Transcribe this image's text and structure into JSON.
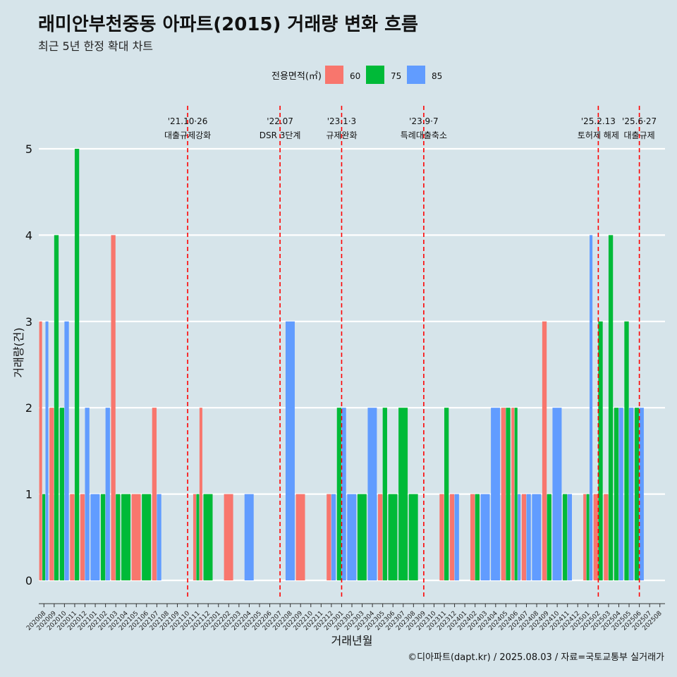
{
  "header": {
    "title": "래미안부천중동 아파트(2015) 거래량 변화 흐름",
    "subtitle": "최근 5년 한정 확대 차트",
    "caption": "©디아파트(dapt.kr) / 2025.08.03 / 자료=국토교통부 실거래가"
  },
  "colors": {
    "60": "#f8766d",
    "75": "#00ba38",
    "85": "#619cff",
    "event": "#ff0000",
    "background": "#d6e4ea",
    "grid": "#ffffff"
  },
  "chart_data": {
    "type": "bar",
    "title": "래미안부천중동 아파트(2015) 거래량 변화 흐름",
    "subtitle": "최근 5년 한정 확대 차트",
    "xlabel": "거래년월",
    "ylabel": "거래량(건)",
    "ylim": [
      0,
      5
    ],
    "yticks": [
      0,
      1,
      2,
      3,
      4,
      5
    ],
    "grid": true,
    "legend": {
      "title": "전용면적(㎡)",
      "position": "top",
      "entries": [
        "60",
        "75",
        "85"
      ]
    },
    "categories": [
      "202008",
      "202009",
      "202010",
      "202011",
      "202012",
      "202101",
      "202102",
      "202103",
      "202104",
      "202105",
      "202106",
      "202107",
      "202108",
      "202109",
      "202110",
      "202111",
      "202112",
      "202201",
      "202202",
      "202203",
      "202204",
      "202205",
      "202206",
      "202207",
      "202208",
      "202209",
      "202210",
      "202211",
      "202212",
      "202301",
      "202302",
      "202303",
      "202304",
      "202305",
      "202306",
      "202307",
      "202308",
      "202309",
      "202310",
      "202311",
      "202312",
      "202401",
      "202402",
      "202403",
      "202404",
      "202405",
      "202406",
      "202407",
      "202408",
      "202409",
      "202410",
      "202411",
      "202412",
      "202501",
      "202502",
      "202503",
      "202504",
      "202505",
      "202506",
      "202507",
      "202508"
    ],
    "bars": [
      {
        "month": "202008",
        "area": "60",
        "count": 3
      },
      {
        "month": "202008",
        "area": "75",
        "count": 1
      },
      {
        "month": "202008",
        "area": "85",
        "count": 3
      },
      {
        "month": "202009",
        "area": "60",
        "count": 2
      },
      {
        "month": "202009",
        "area": "75",
        "count": 4
      },
      {
        "month": "202010",
        "area": "75",
        "count": 2
      },
      {
        "month": "202010",
        "area": "85",
        "count": 3
      },
      {
        "month": "202011",
        "area": "60",
        "count": 1
      },
      {
        "month": "202011",
        "area": "75",
        "count": 5
      },
      {
        "month": "202012",
        "area": "60",
        "count": 1
      },
      {
        "month": "202012",
        "area": "85",
        "count": 2
      },
      {
        "month": "202101",
        "area": "85",
        "count": 1
      },
      {
        "month": "202102",
        "area": "75",
        "count": 1
      },
      {
        "month": "202102",
        "area": "85",
        "count": 2
      },
      {
        "month": "202103",
        "area": "60",
        "count": 4
      },
      {
        "month": "202103",
        "area": "75",
        "count": 1
      },
      {
        "month": "202104",
        "area": "75",
        "count": 1
      },
      {
        "month": "202105",
        "area": "60",
        "count": 1
      },
      {
        "month": "202106",
        "area": "75",
        "count": 1
      },
      {
        "month": "202107",
        "area": "60",
        "count": 2
      },
      {
        "month": "202107",
        "area": "85",
        "count": 1
      },
      {
        "month": "202111",
        "area": "60",
        "count": 1
      },
      {
        "month": "202111",
        "area": "75",
        "count": 1
      },
      {
        "month": "202111",
        "area": "60",
        "count": 2
      },
      {
        "month": "202112",
        "area": "75",
        "count": 1
      },
      {
        "month": "202202",
        "area": "60",
        "count": 1
      },
      {
        "month": "202204",
        "area": "85",
        "count": 1
      },
      {
        "month": "202208",
        "area": "85",
        "count": 3
      },
      {
        "month": "202209",
        "area": "60",
        "count": 1
      },
      {
        "month": "202212",
        "area": "60",
        "count": 1
      },
      {
        "month": "202212",
        "area": "85",
        "count": 1
      },
      {
        "month": "202301",
        "area": "75",
        "count": 2
      },
      {
        "month": "202301",
        "area": "85",
        "count": 2
      },
      {
        "month": "202302",
        "area": "85",
        "count": 1
      },
      {
        "month": "202303",
        "area": "75",
        "count": 1
      },
      {
        "month": "202304",
        "area": "85",
        "count": 2
      },
      {
        "month": "202305",
        "area": "60",
        "count": 1
      },
      {
        "month": "202305",
        "area": "75",
        "count": 2
      },
      {
        "month": "202306",
        "area": "75",
        "count": 1
      },
      {
        "month": "202307",
        "area": "75",
        "count": 2
      },
      {
        "month": "202308",
        "area": "75",
        "count": 1
      },
      {
        "month": "202311",
        "area": "60",
        "count": 1
      },
      {
        "month": "202311",
        "area": "75",
        "count": 2
      },
      {
        "month": "202312",
        "area": "60",
        "count": 1
      },
      {
        "month": "202312",
        "area": "85",
        "count": 1
      },
      {
        "month": "202402",
        "area": "60",
        "count": 1
      },
      {
        "month": "202402",
        "area": "75",
        "count": 1
      },
      {
        "month": "202403",
        "area": "85",
        "count": 1
      },
      {
        "month": "202404",
        "area": "85",
        "count": 2
      },
      {
        "month": "202405",
        "area": "60",
        "count": 2
      },
      {
        "month": "202405",
        "area": "75",
        "count": 2
      },
      {
        "month": "202406",
        "area": "60",
        "count": 2
      },
      {
        "month": "202406",
        "area": "75",
        "count": 2
      },
      {
        "month": "202406",
        "area": "85",
        "count": 1
      },
      {
        "month": "202407",
        "area": "60",
        "count": 1
      },
      {
        "month": "202407",
        "area": "85",
        "count": 1
      },
      {
        "month": "202408",
        "area": "85",
        "count": 1
      },
      {
        "month": "202409",
        "area": "60",
        "count": 3
      },
      {
        "month": "202409",
        "area": "75",
        "count": 1
      },
      {
        "month": "202410",
        "area": "85",
        "count": 2
      },
      {
        "month": "202411",
        "area": "75",
        "count": 1
      },
      {
        "month": "202411",
        "area": "85",
        "count": 1
      },
      {
        "month": "202501",
        "area": "60",
        "count": 1
      },
      {
        "month": "202501",
        "area": "75",
        "count": 1
      },
      {
        "month": "202501",
        "area": "85",
        "count": 4
      },
      {
        "month": "202502",
        "area": "60",
        "count": 1
      },
      {
        "month": "202502",
        "area": "75",
        "count": 3
      },
      {
        "month": "202503",
        "area": "60",
        "count": 1
      },
      {
        "month": "202503",
        "area": "75",
        "count": 4
      },
      {
        "month": "202504",
        "area": "75",
        "count": 2
      },
      {
        "month": "202504",
        "area": "85",
        "count": 2
      },
      {
        "month": "202505",
        "area": "75",
        "count": 3
      },
      {
        "month": "202505",
        "area": "85",
        "count": 2
      },
      {
        "month": "202506",
        "area": "75",
        "count": 2
      },
      {
        "month": "202506",
        "area": "85",
        "count": 2
      }
    ],
    "events": [
      {
        "month": "202110",
        "date": "'21.10·26",
        "label": "대출규제강화"
      },
      {
        "month": "202207",
        "date": "'22.07",
        "label": "DSR 3단계"
      },
      {
        "month": "202301",
        "date": "'23.1·3",
        "label": "규제완화"
      },
      {
        "month": "202309",
        "date": "'23.9·7",
        "label": "특례대출축소"
      },
      {
        "month": "202502",
        "date": "'25.2.13",
        "label": "토허제 해제"
      },
      {
        "month": "202506",
        "date": "'25.6·27",
        "label": "대출규제"
      }
    ]
  }
}
